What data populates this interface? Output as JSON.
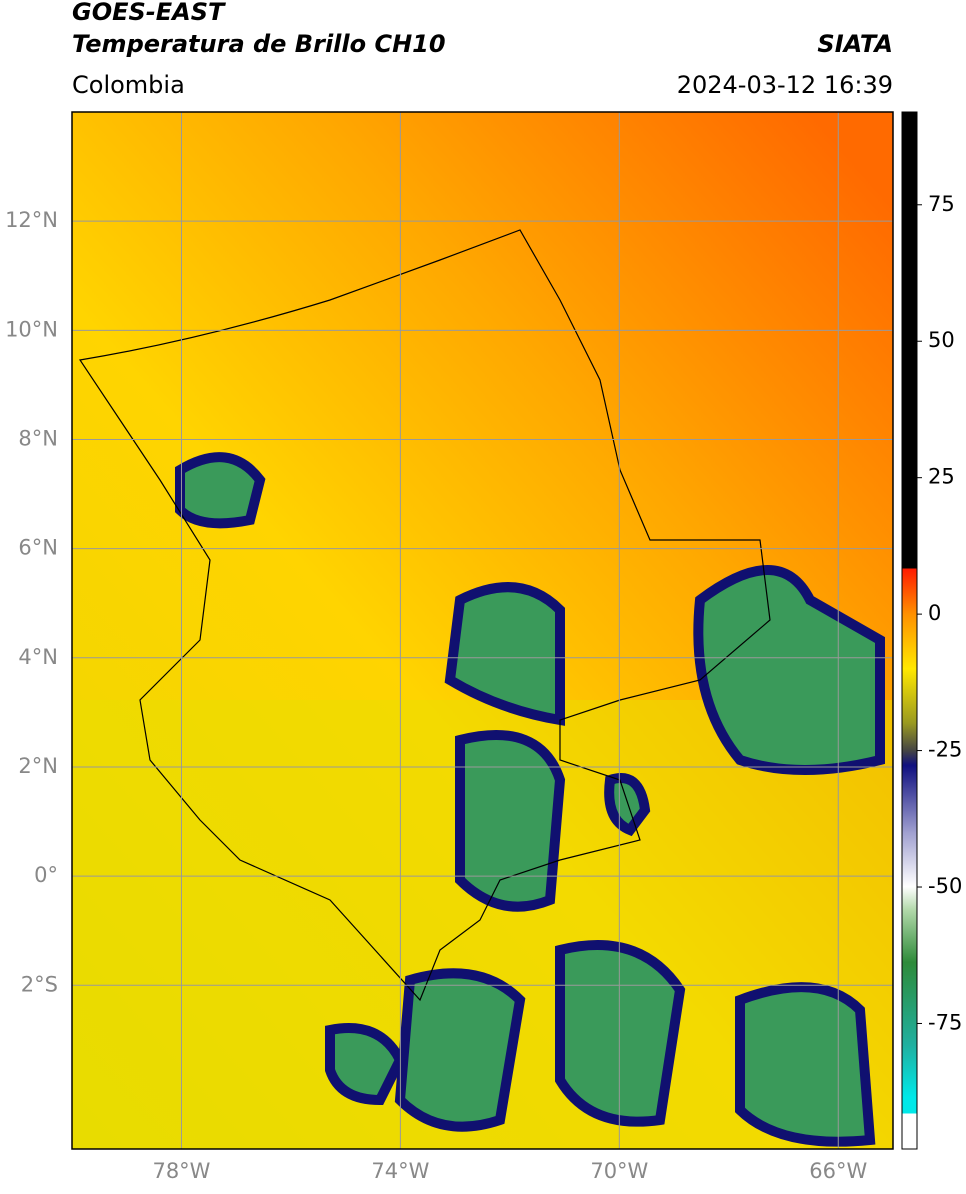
{
  "header": {
    "satellite": "GOES-EAST",
    "product": "Temperatura de Brillo CH10",
    "region": "Colombia",
    "source": "SIATA",
    "datetime": "2024-03-12 16:39"
  },
  "map": {
    "xlim": [
      -80,
      -65
    ],
    "ylim": [
      -5,
      14
    ],
    "grid": true,
    "lon_ticks": [
      {
        "value": -78,
        "label": "78°W"
      },
      {
        "value": -74,
        "label": "74°W"
      },
      {
        "value": -70,
        "label": "70°W"
      },
      {
        "value": -66,
        "label": "66°W"
      }
    ],
    "lat_ticks": [
      {
        "value": 12,
        "label": "12°N"
      },
      {
        "value": 10,
        "label": "10°N"
      },
      {
        "value": 8,
        "label": "8°N"
      },
      {
        "value": 6,
        "label": "6°N"
      },
      {
        "value": 4,
        "label": "4°N"
      },
      {
        "value": 2,
        "label": "2°N"
      },
      {
        "value": 0,
        "label": "0°"
      },
      {
        "value": -2,
        "label": "2°S"
      }
    ]
  },
  "colorbar": {
    "lim": [
      -98,
      92
    ],
    "ticks": [
      75,
      50,
      25,
      0,
      -25,
      -50,
      -75
    ]
  }
}
